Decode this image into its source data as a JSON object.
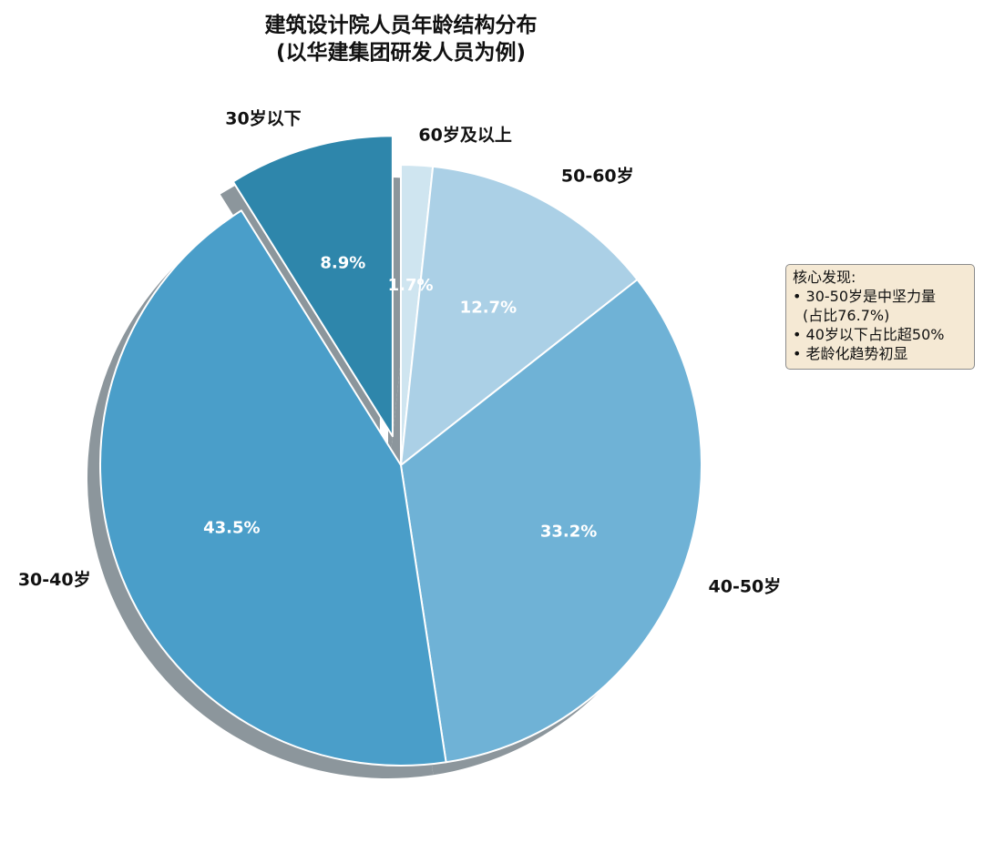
{
  "chart_data": {
    "type": "pie",
    "title": "建筑设计院人员年龄结构分布",
    "subtitle": "(以华建集团研发人员为例)",
    "slices": [
      {
        "label": "60岁及以上",
        "value": 1.7,
        "pct_label": "1.7%",
        "color": "#cfe5f0"
      },
      {
        "label": "50-60岁",
        "value": 12.7,
        "pct_label": "12.7%",
        "color": "#abd0e6"
      },
      {
        "label": "40-50岁",
        "value": 33.2,
        "pct_label": "33.2%",
        "color": "#6fb2d6"
      },
      {
        "label": "30-40岁",
        "value": 43.5,
        "pct_label": "43.5%",
        "color": "#4a9ec9"
      },
      {
        "label": "30岁以下",
        "value": 8.9,
        "pct_label": "8.9%",
        "color": "#2e86ab",
        "exploded": true
      }
    ],
    "start_angle_deg": 90,
    "direction": "clockwise",
    "shadow": true,
    "legend": "none"
  },
  "annotation": {
    "heading": "核心发现:",
    "lines": [
      "• 30-50岁是中坚力量",
      "(占比76.7%)",
      "• 40岁以下占比超50%",
      "• 老龄化趋势初显"
    ],
    "box_color": "#f5e9d4",
    "placement": "right"
  }
}
